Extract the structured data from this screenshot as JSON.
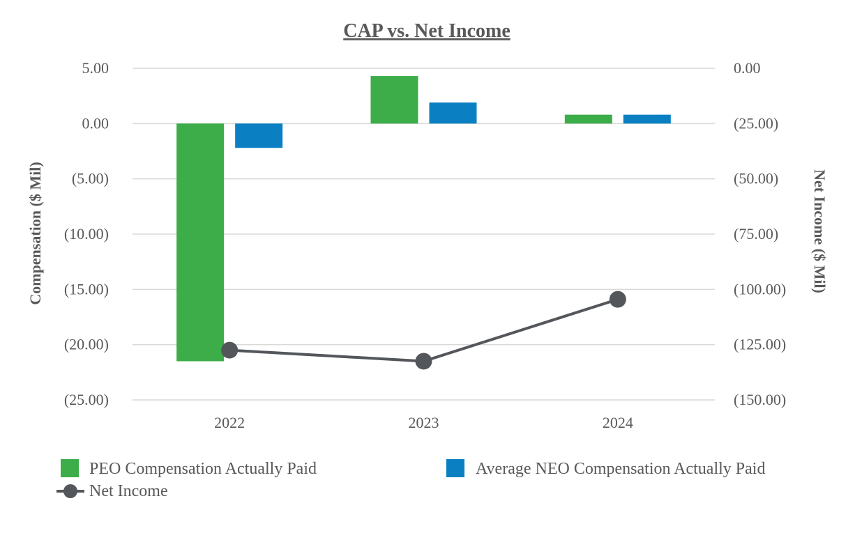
{
  "chart_data": {
    "type": "bar+line",
    "title": "CAP vs. Net Income",
    "categories": [
      "2022",
      "2023",
      "2024"
    ],
    "series": [
      {
        "name": "PEO Compensation Actually Paid",
        "type": "bar",
        "axis": "left",
        "color": "#3cad49",
        "values": [
          -21.5,
          4.3,
          0.8
        ]
      },
      {
        "name": "Average NEO Compensation Actually Paid",
        "type": "bar",
        "axis": "left",
        "color": "#0a80c2",
        "values": [
          -2.2,
          1.9,
          0.8
        ]
      },
      {
        "name": "Net Income",
        "type": "line",
        "axis": "right",
        "color": "#53565a",
        "values": [
          -127.5,
          -132.5,
          -104.5
        ]
      }
    ],
    "left_axis": {
      "label": "Compensation ($ Mil)",
      "ylim": [
        -25,
        5
      ],
      "ticks": [
        5,
        0,
        -5,
        -10,
        -15,
        -20,
        -25
      ],
      "tick_labels": [
        "5.00",
        "0.00",
        "(5.00)",
        "(10.00)",
        "(15.00)",
        "(20.00)",
        "(25.00)"
      ]
    },
    "right_axis": {
      "label": "Net Income ($ Mil)",
      "ylim": [
        -150,
        0
      ],
      "ticks": [
        0,
        -25,
        -50,
        -75,
        -100,
        -125,
        -150
      ],
      "tick_labels": [
        "0.00",
        "(25.00)",
        "(50.00)",
        "(75.00)",
        "(100.00)",
        "(125.00)",
        "(150.00)"
      ]
    },
    "grid": true,
    "legend": {
      "position": "bottom",
      "entries": [
        "PEO Compensation Actually Paid",
        "Average NEO Compensation Actually Paid",
        "Net Income"
      ]
    }
  }
}
